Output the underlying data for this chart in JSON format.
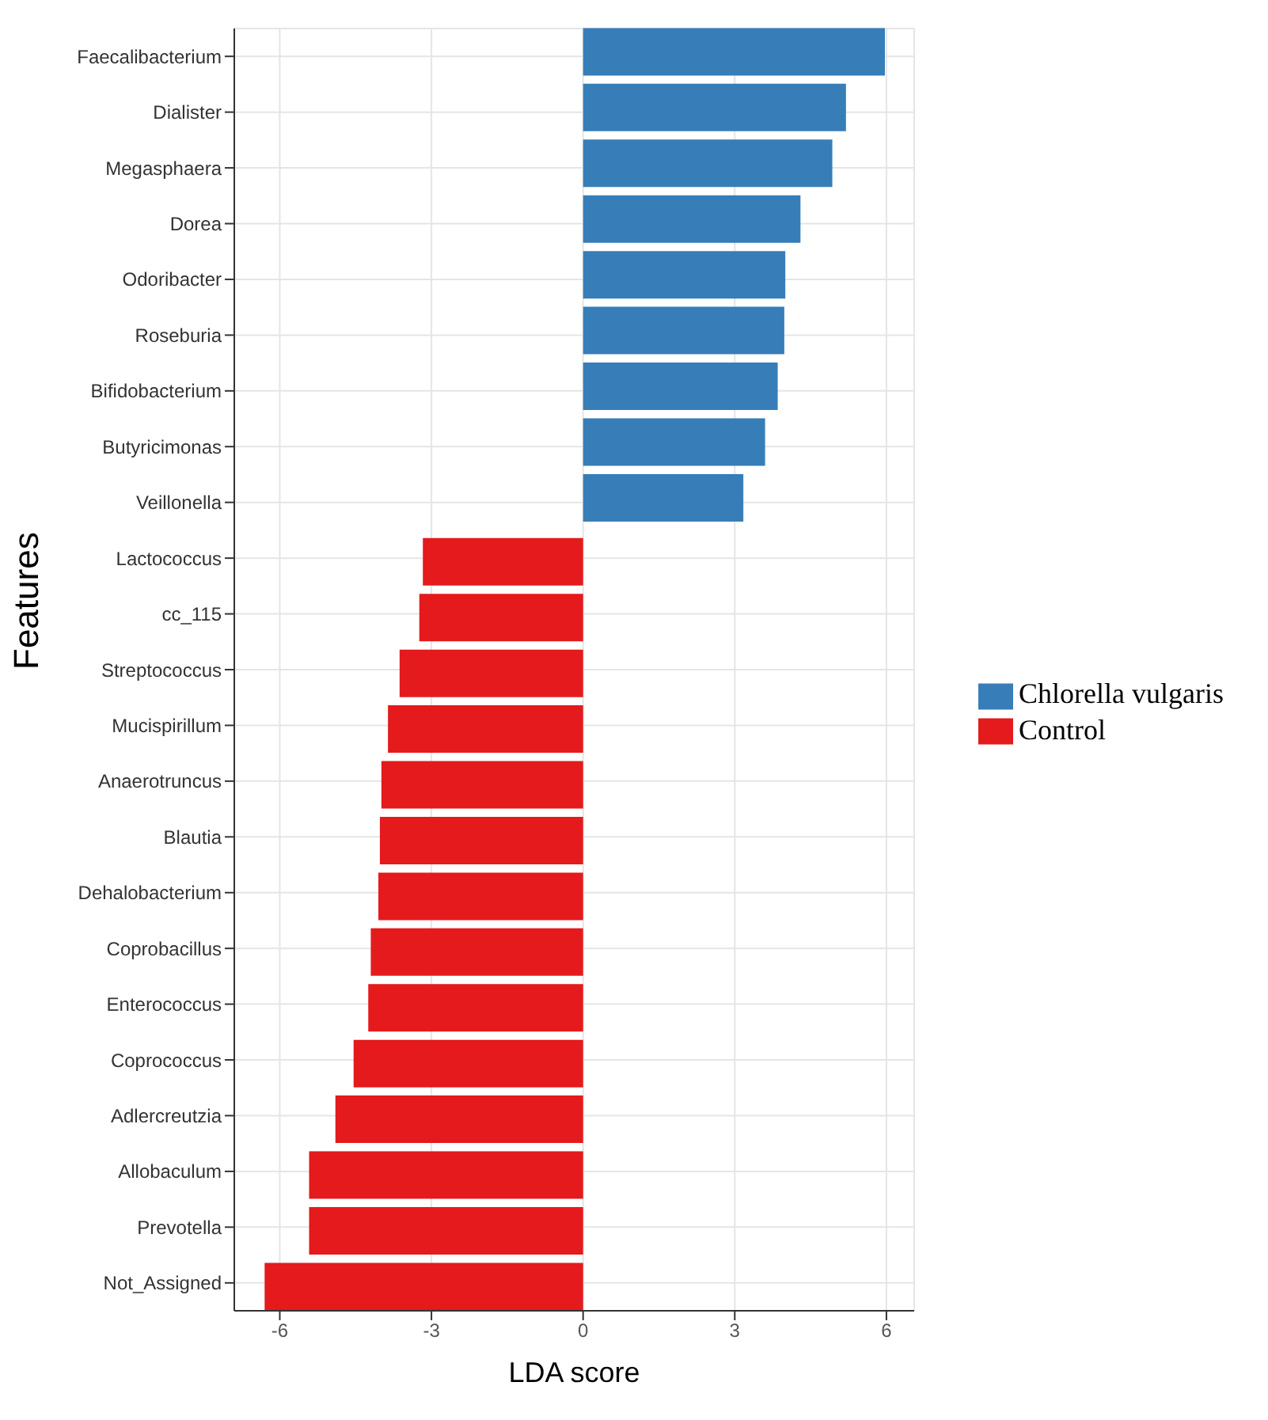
{
  "chart_data": {
    "type": "bar",
    "orientation": "horizontal",
    "xlabel": "LDA score",
    "ylabel": "Features",
    "categories": [
      "Faecalibacterium",
      "Dialister",
      "Megasphaera",
      "Dorea",
      "Odoribacter",
      "Roseburia",
      "Bifidobacterium",
      "Butyricimonas",
      "Veillonella",
      "Lactococcus",
      "cc_115",
      "Streptococcus",
      "Mucispirillum",
      "Anaerotruncus",
      "Blautia",
      "Dehalobacterium",
      "Coprobacillus",
      "Enterococcus",
      "Coprococcus",
      "Adlercreutzia",
      "Allobaculum",
      "Prevotella",
      "Not_Assigned"
    ],
    "series": [
      {
        "name": "Control",
        "color": "#e41a1c",
        "values": [
          null,
          null,
          null,
          null,
          null,
          null,
          null,
          null,
          null,
          -3.17,
          -3.24,
          -3.63,
          -3.86,
          -3.99,
          -4.02,
          -4.05,
          -4.2,
          -4.25,
          -4.54,
          -4.9,
          -5.42,
          -5.42,
          -6.3
        ]
      },
      {
        "name": "Chlorella vulgaris",
        "color": "#377eb8",
        "values": [
          5.97,
          5.2,
          4.93,
          4.3,
          4.0,
          3.98,
          3.85,
          3.6,
          3.17,
          null,
          null,
          null,
          null,
          null,
          null,
          null,
          null,
          null,
          null,
          null,
          null,
          null,
          null
        ]
      }
    ],
    "xlim": [
      -6.9,
      6.55
    ],
    "xticks": [
      -6,
      -3,
      0,
      3,
      6
    ],
    "grid": true,
    "legend": "right"
  }
}
